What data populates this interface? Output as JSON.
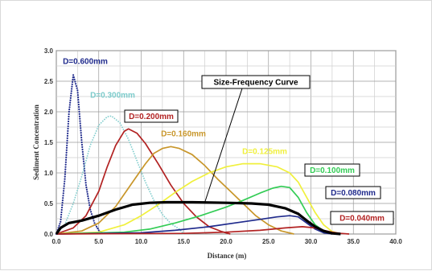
{
  "chart_data": {
    "type": "line",
    "title": "",
    "xlabel": "Distance (m)",
    "ylabel": "Sediment Concentration",
    "xlim": [
      0,
      40
    ],
    "ylim": [
      0,
      3
    ],
    "x_ticks": [
      "0.0",
      "5.0",
      "10.0",
      "15.0",
      "20.0",
      "25.0",
      "30.0",
      "35.0",
      "40.0"
    ],
    "y_ticks": [
      "0.0",
      "0.5",
      "1.0",
      "1.5",
      "2.0",
      "2.5",
      "3.0"
    ],
    "grid": true,
    "series": [
      {
        "name": "D=0.600mm",
        "color": "#1f2a8c",
        "style": "dotted",
        "points": [
          [
            0.0,
            0.0
          ],
          [
            0.5,
            0.2
          ],
          [
            1.0,
            0.9
          ],
          [
            1.5,
            2.0
          ],
          [
            2.0,
            2.6
          ],
          [
            2.5,
            2.35
          ],
          [
            3.0,
            1.5
          ],
          [
            3.5,
            0.8
          ],
          [
            4.0,
            0.4
          ],
          [
            4.5,
            0.18
          ],
          [
            5.0,
            0.06
          ],
          [
            5.5,
            0.0
          ]
        ]
      },
      {
        "name": "D=0.300mm",
        "color": "#7ccbcb",
        "style": "dotted-solid",
        "points": [
          [
            0.0,
            0.0
          ],
          [
            1.0,
            0.15
          ],
          [
            2.0,
            0.5
          ],
          [
            3.0,
            0.95
          ],
          [
            4.0,
            1.45
          ],
          [
            5.0,
            1.78
          ],
          [
            6.0,
            1.92
          ],
          [
            6.5,
            1.93
          ],
          [
            7.5,
            1.82
          ],
          [
            8.5,
            1.55
          ],
          [
            9.5,
            1.2
          ],
          [
            10.5,
            0.85
          ],
          [
            11.5,
            0.55
          ],
          [
            12.5,
            0.32
          ],
          [
            13.5,
            0.17
          ],
          [
            14.5,
            0.08
          ],
          [
            15.0,
            0.0
          ]
        ]
      },
      {
        "name": "D=0.200mm",
        "color": "#b22222",
        "style": "solid",
        "points": [
          [
            0.0,
            0.0
          ],
          [
            2.0,
            0.1
          ],
          [
            3.5,
            0.3
          ],
          [
            5.0,
            0.7
          ],
          [
            6.0,
            1.1
          ],
          [
            7.0,
            1.45
          ],
          [
            8.0,
            1.68
          ],
          [
            8.5,
            1.72
          ],
          [
            9.5,
            1.65
          ],
          [
            10.5,
            1.48
          ],
          [
            12.0,
            1.15
          ],
          [
            13.5,
            0.8
          ],
          [
            15.0,
            0.5
          ],
          [
            16.5,
            0.28
          ],
          [
            18.0,
            0.12
          ],
          [
            19.5,
            0.04
          ],
          [
            20.5,
            0.0
          ]
        ]
      },
      {
        "name": "D=0.160mm",
        "color": "#c8962a",
        "style": "solid",
        "points": [
          [
            0.0,
            0.0
          ],
          [
            3.0,
            0.05
          ],
          [
            5.0,
            0.18
          ],
          [
            7.0,
            0.45
          ],
          [
            9.0,
            0.85
          ],
          [
            10.5,
            1.15
          ],
          [
            11.5,
            1.32
          ],
          [
            12.5,
            1.4
          ],
          [
            13.5,
            1.43
          ],
          [
            14.5,
            1.4
          ],
          [
            16.0,
            1.3
          ],
          [
            17.5,
            1.12
          ],
          [
            19.0,
            0.9
          ],
          [
            20.5,
            0.7
          ],
          [
            22.0,
            0.5
          ],
          [
            23.5,
            0.3
          ],
          [
            25.0,
            0.15
          ],
          [
            26.5,
            0.05
          ],
          [
            28.0,
            0.0
          ]
        ]
      },
      {
        "name": "D=0.125mm",
        "color": "#f0f03c",
        "style": "solid",
        "points": [
          [
            0.0,
            0.0
          ],
          [
            5.0,
            0.03
          ],
          [
            8.0,
            0.15
          ],
          [
            10.0,
            0.3
          ],
          [
            12.0,
            0.48
          ],
          [
            14.0,
            0.68
          ],
          [
            16.0,
            0.86
          ],
          [
            18.0,
            1.0
          ],
          [
            20.0,
            1.1
          ],
          [
            22.0,
            1.15
          ],
          [
            24.0,
            1.15
          ],
          [
            26.0,
            1.1
          ],
          [
            27.5,
            1.0
          ],
          [
            28.5,
            0.85
          ],
          [
            29.5,
            0.6
          ],
          [
            30.5,
            0.35
          ],
          [
            31.5,
            0.15
          ],
          [
            32.5,
            0.04
          ],
          [
            33.5,
            0.0
          ]
        ]
      },
      {
        "name": "D=0.100mm",
        "color": "#33cc55",
        "style": "solid",
        "points": [
          [
            0.0,
            0.0
          ],
          [
            8.0,
            0.03
          ],
          [
            11.0,
            0.08
          ],
          [
            14.0,
            0.18
          ],
          [
            17.0,
            0.3
          ],
          [
            20.0,
            0.44
          ],
          [
            22.0,
            0.55
          ],
          [
            24.0,
            0.67
          ],
          [
            25.5,
            0.75
          ],
          [
            26.5,
            0.78
          ],
          [
            27.5,
            0.76
          ],
          [
            28.5,
            0.6
          ],
          [
            29.5,
            0.35
          ],
          [
            30.5,
            0.15
          ],
          [
            31.5,
            0.05
          ],
          [
            32.5,
            0.0
          ]
        ]
      },
      {
        "name": "D=0.080mm",
        "color": "#1f2a8c",
        "style": "solid",
        "points": [
          [
            0.0,
            0.0
          ],
          [
            10.0,
            0.02
          ],
          [
            14.0,
            0.06
          ],
          [
            18.0,
            0.12
          ],
          [
            21.0,
            0.18
          ],
          [
            24.0,
            0.24
          ],
          [
            26.0,
            0.28
          ],
          [
            27.5,
            0.3
          ],
          [
            28.5,
            0.28
          ],
          [
            29.5,
            0.18
          ],
          [
            30.5,
            0.08
          ],
          [
            31.5,
            0.02
          ],
          [
            32.5,
            0.0
          ]
        ]
      },
      {
        "name": "D=0.040mm",
        "color": "#b22222",
        "style": "solid",
        "points": [
          [
            0.0,
            0.0
          ],
          [
            15.0,
            0.01
          ],
          [
            20.0,
            0.03
          ],
          [
            24.0,
            0.06
          ],
          [
            27.0,
            0.1
          ],
          [
            29.0,
            0.12
          ],
          [
            30.5,
            0.1
          ],
          [
            31.5,
            0.06
          ],
          [
            32.5,
            0.03
          ],
          [
            33.5,
            0.01
          ],
          [
            34.5,
            0.0
          ]
        ]
      },
      {
        "name": "Size-Frequency Curve",
        "color": "#000000",
        "style": "thick",
        "points": [
          [
            0.0,
            0.0
          ],
          [
            0.5,
            0.1
          ],
          [
            1.5,
            0.18
          ],
          [
            3.0,
            0.22
          ],
          [
            5.0,
            0.3
          ],
          [
            7.0,
            0.4
          ],
          [
            9.0,
            0.48
          ],
          [
            11.0,
            0.51
          ],
          [
            13.0,
            0.52
          ],
          [
            16.0,
            0.52
          ],
          [
            20.0,
            0.51
          ],
          [
            23.0,
            0.5
          ],
          [
            25.0,
            0.48
          ],
          [
            27.0,
            0.42
          ],
          [
            28.5,
            0.33
          ],
          [
            29.5,
            0.22
          ],
          [
            30.5,
            0.12
          ],
          [
            31.5,
            0.05
          ],
          [
            32.5,
            0.01
          ],
          [
            33.5,
            0.0
          ]
        ]
      }
    ],
    "annotations": [
      {
        "text": "D=0.600mm",
        "color": "#1f2a8c",
        "boxed": false
      },
      {
        "text": "D=0.300mm",
        "color": "#7ccbcb",
        "boxed": false
      },
      {
        "text": "D=0.200mm",
        "color": "#b22222",
        "boxed": true
      },
      {
        "text": "D=0.160mm",
        "color": "#c8962a",
        "boxed": false
      },
      {
        "text": "D=0.125mm",
        "color": "#f0f03c",
        "boxed": false
      },
      {
        "text": "D=0.100mm",
        "color": "#33cc55",
        "boxed": true
      },
      {
        "text": "D=0.080mm",
        "color": "#1f2a8c",
        "boxed": true
      },
      {
        "text": "D=0.040mm",
        "color": "#b22222",
        "boxed": true
      },
      {
        "text": "Size-Frequency Curve",
        "color": "#000000",
        "boxed": true
      }
    ]
  }
}
